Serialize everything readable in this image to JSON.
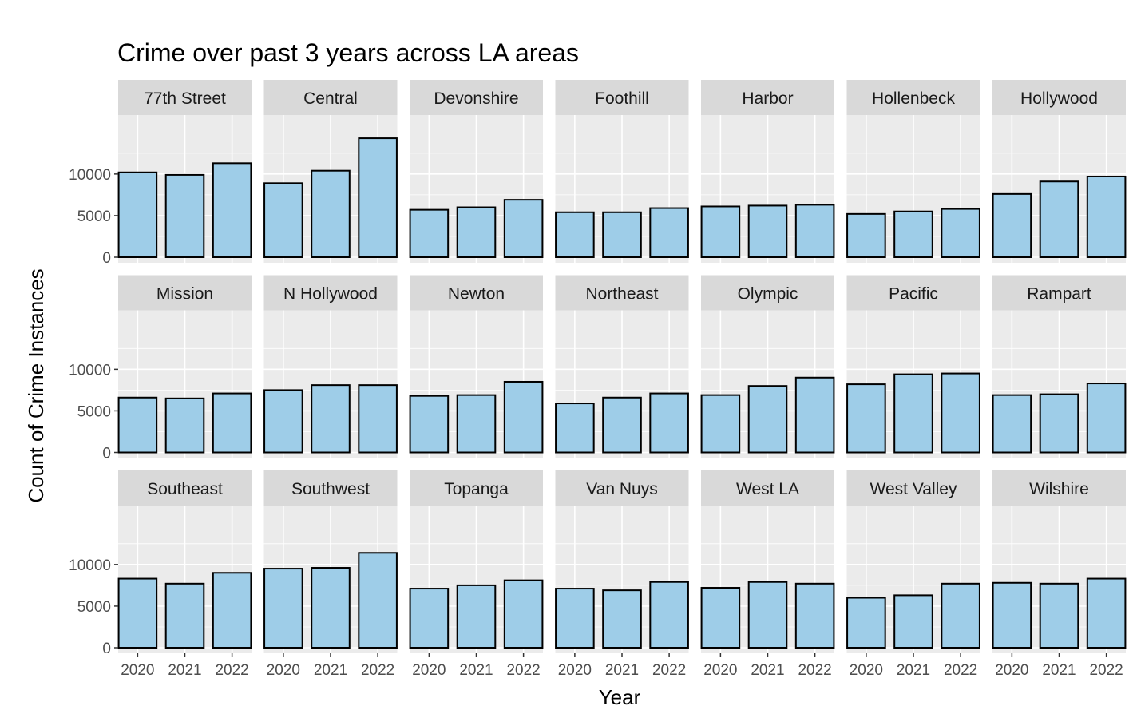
{
  "chart_data": {
    "type": "bar",
    "layout": "facet_wrap",
    "title": "Crime over past 3 years across LA areas",
    "xlabel": "Year",
    "ylabel": "Count of Crime Instances",
    "categories": [
      "2020",
      "2021",
      "2022"
    ],
    "ylim": [
      0,
      14500
    ],
    "y_ticks": [
      0,
      5000,
      10000
    ],
    "bar_color": "#9ecde8",
    "bar_outline": "#000000",
    "grid": true,
    "facets": [
      {
        "name": "77th Street",
        "values": [
          10200,
          9900,
          11300
        ]
      },
      {
        "name": "Central",
        "values": [
          8900,
          10400,
          14300
        ]
      },
      {
        "name": "Devonshire",
        "values": [
          5700,
          6000,
          6900
        ]
      },
      {
        "name": "Foothill",
        "values": [
          5400,
          5400,
          5900
        ]
      },
      {
        "name": "Harbor",
        "values": [
          6100,
          6200,
          6300
        ]
      },
      {
        "name": "Hollenbeck",
        "values": [
          5200,
          5500,
          5800
        ]
      },
      {
        "name": "Hollywood",
        "values": [
          7600,
          9100,
          9700
        ]
      },
      {
        "name": "Mission",
        "values": [
          6600,
          6500,
          7100
        ]
      },
      {
        "name": "N Hollywood",
        "values": [
          7500,
          8100,
          8100
        ]
      },
      {
        "name": "Newton",
        "values": [
          6800,
          6900,
          8500
        ]
      },
      {
        "name": "Northeast",
        "values": [
          5900,
          6600,
          7100
        ]
      },
      {
        "name": "Olympic",
        "values": [
          6900,
          8000,
          9000
        ]
      },
      {
        "name": "Pacific",
        "values": [
          8200,
          9400,
          9500
        ]
      },
      {
        "name": "Rampart",
        "values": [
          6900,
          7000,
          8300
        ]
      },
      {
        "name": "Southeast",
        "values": [
          8300,
          7700,
          9000
        ]
      },
      {
        "name": "Southwest",
        "values": [
          9500,
          9600,
          11400
        ]
      },
      {
        "name": "Topanga",
        "values": [
          7100,
          7500,
          8100
        ]
      },
      {
        "name": "Van Nuys",
        "values": [
          7100,
          6900,
          7900
        ]
      },
      {
        "name": "West LA",
        "values": [
          7200,
          7900,
          7700
        ]
      },
      {
        "name": "West Valley",
        "values": [
          6000,
          6300,
          7700
        ]
      },
      {
        "name": "Wilshire",
        "values": [
          7800,
          7700,
          8300
        ]
      }
    ]
  }
}
